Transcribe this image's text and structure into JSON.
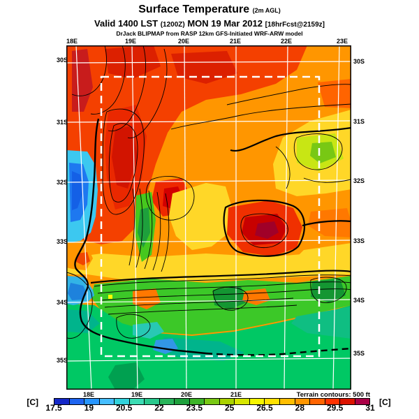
{
  "title": {
    "main": "Surface Temperature",
    "suffix": "(2m AGL)"
  },
  "subtitle": {
    "valid_prefix": "Valid 1400 LST",
    "init_time": "(1200Z)",
    "date": "MON 19 Mar 2012",
    "forecast_tag": "[18hrFcst@2159z]"
  },
  "credit": "DrJack BLIPMAP from RASP 12km GFS-Initiated WRF-ARW model",
  "map": {
    "top_labels": [
      "18E",
      "19E",
      "20E",
      "21E",
      "22E",
      "23E"
    ],
    "bottom_labels": [
      "18E",
      "19E",
      "20E",
      "21E"
    ],
    "left_labels": [
      "30S",
      "31S",
      "32S",
      "33S",
      "34S",
      "35S"
    ],
    "right_labels": [
      "30S",
      "31S",
      "32S",
      "33S",
      "34S",
      "35S"
    ],
    "terrain_note": "Terrain contours: 500 ft"
  },
  "colorbar": {
    "unit_left": "[C]",
    "unit_right": "[C]",
    "ticks": [
      "17.5",
      "19",
      "20.5",
      "22",
      "23.5",
      "25",
      "26.5",
      "28",
      "29.5",
      "31"
    ],
    "colors": [
      "#1428c8",
      "#1e64f0",
      "#2896ff",
      "#46beff",
      "#32d2dc",
      "#3cdcb4",
      "#28c88c",
      "#28b45a",
      "#1ea03c",
      "#3cb428",
      "#78c814",
      "#aad200",
      "#d7e600",
      "#f5f500",
      "#ffe100",
      "#ffbe00",
      "#ff9600",
      "#ff6400",
      "#ff3200",
      "#dc1400",
      "#aa0046"
    ]
  },
  "chart_data": {
    "type": "heatmap",
    "title": "Surface Temperature (2m AGL)",
    "valid_line": "Valid 1400 LST (1200Z) MON 19 Mar 2012 [18hrFcst@2159z]",
    "units": "C",
    "scale_range": [
      17.5,
      31
    ],
    "scale_ticks": [
      17.5,
      19,
      20.5,
      22,
      23.5,
      25,
      26.5,
      28,
      29.5,
      31
    ],
    "x_axis_labels": [
      "18E",
      "19E",
      "20E",
      "21E",
      "22E",
      "23E"
    ],
    "y_axis_labels": [
      "30S",
      "31S",
      "32S",
      "33S",
      "34S",
      "35S"
    ],
    "annotations": [
      "Terrain contours: 500 ft"
    ],
    "legend_position": "bottom"
  }
}
